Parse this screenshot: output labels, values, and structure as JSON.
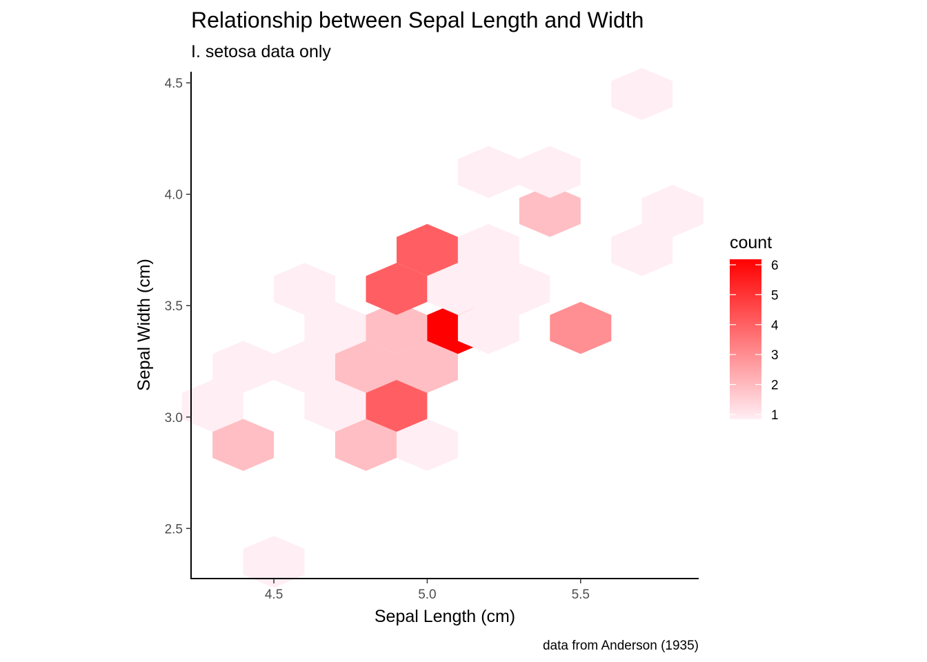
{
  "chart_data": {
    "type": "heatmap",
    "subtype": "hexbin",
    "title": "Relationship between Sepal Length and Width",
    "subtitle": "I. setosa data only",
    "xlabel": "Sepal Length (cm)",
    "ylabel": "Sepal Width (cm)",
    "caption": "data from Anderson (1935)",
    "xlim": [
      4.23,
      5.885
    ],
    "ylim": [
      2.275,
      4.55
    ],
    "xticks": [
      "4.5",
      "5.0",
      "5.5"
    ],
    "yticks": [
      "2.5",
      "3.0",
      "3.5",
      "4.0",
      "4.5"
    ],
    "grid": false,
    "legend": {
      "title": "count",
      "position": "right",
      "range": [
        1,
        6
      ],
      "labels": [
        "1",
        "2",
        "3",
        "4",
        "5",
        "6"
      ],
      "color_low": "#ffeef4",
      "color_high": "#ff0000"
    },
    "points": [
      {
        "x": 4.3,
        "y": 3.05,
        "count": 1
      },
      {
        "x": 4.4,
        "y": 3.225,
        "count": 1
      },
      {
        "x": 4.4,
        "y": 2.875,
        "count": 2
      },
      {
        "x": 4.5,
        "y": 2.35,
        "count": 1
      },
      {
        "x": 4.6,
        "y": 3.225,
        "count": 1
      },
      {
        "x": 4.6,
        "y": 3.575,
        "count": 1
      },
      {
        "x": 4.7,
        "y": 3.4,
        "count": 1
      },
      {
        "x": 4.7,
        "y": 3.05,
        "count": 1
      },
      {
        "x": 4.8,
        "y": 3.225,
        "count": 2
      },
      {
        "x": 4.8,
        "y": 2.875,
        "count": 2
      },
      {
        "x": 4.9,
        "y": 3.4,
        "count": 2
      },
      {
        "x": 4.9,
        "y": 3.05,
        "count": 4
      },
      {
        "x": 4.9,
        "y": 3.575,
        "count": 4
      },
      {
        "x": 5.0,
        "y": 3.225,
        "count": 2
      },
      {
        "x": 5.0,
        "y": 2.875,
        "count": 1
      },
      {
        "x": 5.0,
        "y": 3.75,
        "count": 4
      },
      {
        "x": 5.1,
        "y": 3.4,
        "count": 6
      },
      {
        "x": 5.1,
        "y": 3.575,
        "count": 1
      },
      {
        "x": 5.2,
        "y": 3.4,
        "count": 1
      },
      {
        "x": 5.2,
        "y": 3.75,
        "count": 1
      },
      {
        "x": 5.2,
        "y": 4.1,
        "count": 1
      },
      {
        "x": 5.3,
        "y": 3.575,
        "count": 1
      },
      {
        "x": 5.4,
        "y": 3.925,
        "count": 2
      },
      {
        "x": 5.4,
        "y": 4.1,
        "count": 1
      },
      {
        "x": 5.5,
        "y": 3.4,
        "count": 3
      },
      {
        "x": 5.7,
        "y": 3.75,
        "count": 1
      },
      {
        "x": 5.7,
        "y": 4.45,
        "count": 1
      },
      {
        "x": 5.8,
        "y": 3.925,
        "count": 1
      }
    ]
  }
}
